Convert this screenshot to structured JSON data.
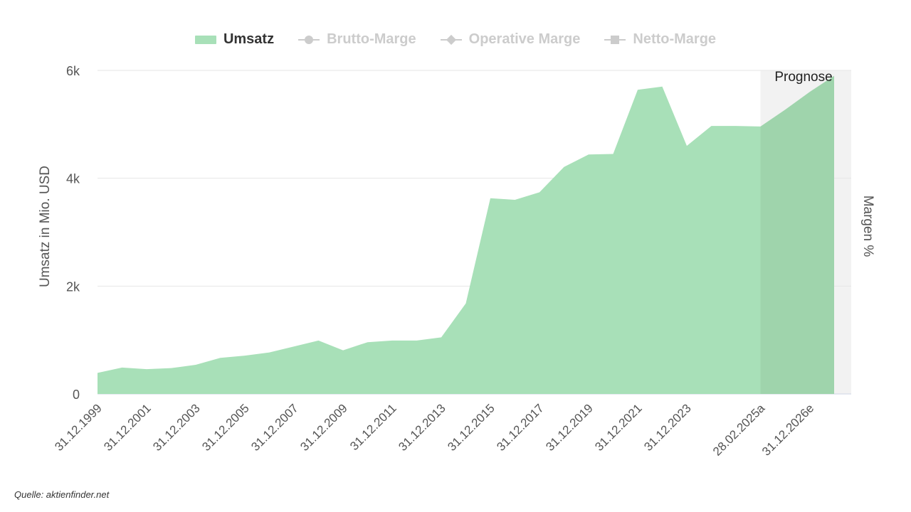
{
  "legend": [
    {
      "label": "Umsatz",
      "active": true,
      "symbol": "area"
    },
    {
      "label": "Brutto-Marge",
      "active": false,
      "symbol": "circle"
    },
    {
      "label": "Operative Marge",
      "active": false,
      "symbol": "diamond"
    },
    {
      "label": "Netto-Marge",
      "active": false,
      "symbol": "square"
    }
  ],
  "source": "Quelle: aktienfinder.net",
  "chart_data": {
    "type": "area",
    "ylabel": "Umsatz in Mio. USD",
    "y2label": "Margen %",
    "ylim": [
      0,
      6000
    ],
    "yticks": [
      0,
      2000,
      4000,
      6000
    ],
    "ytick_labels": [
      "0",
      "2k",
      "4k",
      "6k"
    ],
    "grid": true,
    "legend_position": "top-center",
    "forecast_label": "Prognose",
    "forecast_start_index": 27,
    "x_labels": [
      "31.12.1999",
      "31.12.2001",
      "31.12.2003",
      "31.12.2005",
      "31.12.2007",
      "31.12.2009",
      "31.12.2011",
      "31.12.2013",
      "31.12.2015",
      "31.12.2017",
      "31.12.2019",
      "31.12.2021",
      "31.12.2023",
      "28.02.2025a",
      "31.12.2026e"
    ],
    "x_label_indices": [
      0,
      2,
      4,
      6,
      8,
      10,
      12,
      14,
      16,
      18,
      20,
      22,
      24,
      27,
      29
    ],
    "series": [
      {
        "name": "Umsatz",
        "color": "#a8e0b8",
        "forecast_color": "#9fd4ac",
        "values": [
          390,
          490,
          460,
          480,
          540,
          670,
          710,
          770,
          880,
          990,
          810,
          960,
          990,
          990,
          1050,
          1680,
          3630,
          3600,
          3740,
          4210,
          4440,
          4450,
          5640,
          5700,
          4600,
          4970,
          4970,
          4960,
          5270,
          5600,
          5900
        ]
      }
    ]
  }
}
